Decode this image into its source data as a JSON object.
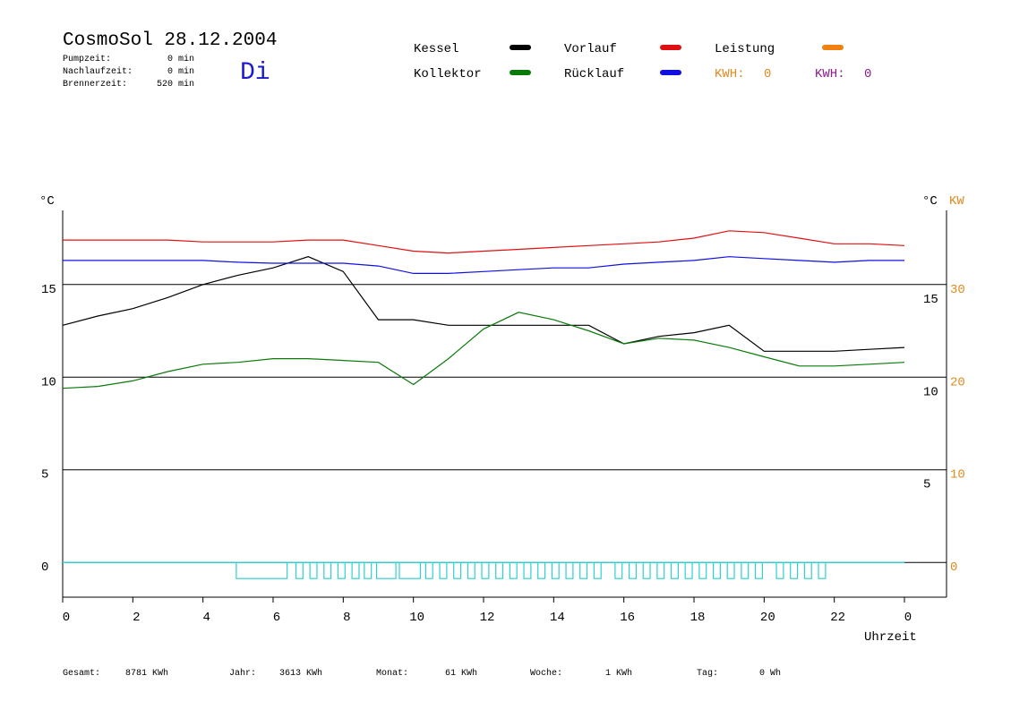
{
  "header": {
    "title": "CosmoSol 28.12.2004",
    "day": "Di",
    "stats": [
      {
        "label": "Pumpzeit:",
        "value": "0 min"
      },
      {
        "label": "Nachlaufzeit:",
        "value": "0 min"
      },
      {
        "label": "Brennerzeit:",
        "value": "520 min"
      }
    ]
  },
  "kwh": [
    {
      "label": "KWH:",
      "value": 0,
      "color": "#e08a1e"
    },
    {
      "label": "KWH:",
      "value": 0,
      "color": "#8a1e8a"
    }
  ],
  "footer": [
    {
      "label": "Gesamt:",
      "value": "8781 KWh"
    },
    {
      "label": "Jahr:",
      "value": "3613 KWh"
    },
    {
      "label": "Monat:",
      "value": "61 KWh"
    },
    {
      "label": "Woche:",
      "value": "1 KWh"
    },
    {
      "label": "Tag:",
      "value": "0 Wh"
    }
  ],
  "chart_data": {
    "type": "line",
    "x": [
      0,
      1,
      2,
      3,
      4,
      5,
      6,
      7,
      8,
      9,
      10,
      11,
      12,
      13,
      14,
      15,
      16,
      17,
      18,
      19,
      20,
      21,
      22,
      23,
      24
    ],
    "xlim": [
      0,
      25.2
    ],
    "xticks": [
      0,
      2,
      4,
      6,
      8,
      10,
      12,
      14,
      16,
      18,
      20,
      22,
      {
        "value": 24,
        "label": "0"
      }
    ],
    "xlabel": "Uhrzeit",
    "ylabel": "°C",
    "y2label_left": "°C",
    "y2label": "KW",
    "ylim": [
      -1.875,
      19
    ],
    "yticks": [
      0,
      5,
      10,
      15
    ],
    "right_yticks": [
      5,
      10,
      15
    ],
    "y2lim": [
      -3.75,
      38
    ],
    "y2ticks": [
      0,
      10,
      20,
      30
    ],
    "y2color": "#e08a1e",
    "grid": true,
    "series": [
      {
        "name": "Kessel",
        "color": "#000000",
        "values": [
          12.8,
          13.3,
          13.7,
          14.3,
          15.0,
          15.5,
          15.9,
          16.5,
          15.7,
          13.1,
          13.1,
          12.8,
          12.8,
          12.8,
          12.8,
          12.8,
          11.8,
          12.2,
          12.4,
          12.8,
          11.4,
          11.4,
          11.4,
          11.5,
          11.6
        ]
      },
      {
        "name": "Kollektor",
        "color": "#0a7a0a",
        "values": [
          9.4,
          9.5,
          9.8,
          10.3,
          10.7,
          10.8,
          11.0,
          11.0,
          10.9,
          10.8,
          9.6,
          11.0,
          12.6,
          13.5,
          13.1,
          12.5,
          11.8,
          12.1,
          12.0,
          11.6,
          11.1,
          10.6,
          10.6,
          10.7,
          10.8
        ]
      },
      {
        "name": "Vorlauf",
        "color": "#e01010",
        "values": [
          17.4,
          17.4,
          17.4,
          17.4,
          17.3,
          17.3,
          17.3,
          17.4,
          17.4,
          17.1,
          16.8,
          16.7,
          16.8,
          16.9,
          17.0,
          17.1,
          17.2,
          17.3,
          17.5,
          17.9,
          17.8,
          17.5,
          17.2,
          17.2,
          17.1
        ]
      },
      {
        "name": "Rücklauf",
        "color": "#1010e0",
        "values": [
          16.3,
          16.3,
          16.3,
          16.3,
          16.3,
          16.2,
          16.15,
          16.15,
          16.15,
          16.0,
          15.6,
          15.6,
          15.7,
          15.8,
          15.9,
          15.9,
          16.1,
          16.2,
          16.3,
          16.5,
          16.4,
          16.3,
          16.2,
          16.3,
          16.3
        ]
      },
      {
        "name": "Leistung",
        "color": "#f08010",
        "axis": "y2",
        "values": [
          null,
          null,
          null,
          null,
          null,
          null,
          null,
          null,
          null,
          null,
          null,
          null,
          null,
          null,
          null,
          null,
          null,
          null,
          null,
          null,
          null,
          null,
          null,
          null,
          null
        ]
      }
    ],
    "burner": {
      "color": "#30d0d0",
      "intervals": [
        [
          4.95,
          6.4
        ],
        [
          6.65,
          6.85
        ],
        [
          7.05,
          7.25
        ],
        [
          7.45,
          7.65
        ],
        [
          7.85,
          8.05
        ],
        [
          8.25,
          8.45
        ],
        [
          8.6,
          8.8
        ],
        [
          8.95,
          9.5
        ],
        [
          9.6,
          10.2
        ],
        [
          10.35,
          10.55
        ],
        [
          10.75,
          10.95
        ],
        [
          11.15,
          11.35
        ],
        [
          11.55,
          11.75
        ],
        [
          11.95,
          12.15
        ],
        [
          12.35,
          12.55
        ],
        [
          12.75,
          12.95
        ],
        [
          13.15,
          13.35
        ],
        [
          13.55,
          13.75
        ],
        [
          13.95,
          14.15
        ],
        [
          14.35,
          14.55
        ],
        [
          14.75,
          14.95
        ],
        [
          15.15,
          15.35
        ],
        [
          15.75,
          15.95
        ],
        [
          16.15,
          16.35
        ],
        [
          16.55,
          16.75
        ],
        [
          16.95,
          17.15
        ],
        [
          17.35,
          17.55
        ],
        [
          17.75,
          17.95
        ],
        [
          18.15,
          18.35
        ],
        [
          18.55,
          18.75
        ],
        [
          18.95,
          19.15
        ],
        [
          19.35,
          19.55
        ],
        [
          19.75,
          19.95
        ],
        [
          20.35,
          20.55
        ],
        [
          20.75,
          20.95
        ],
        [
          21.15,
          21.35
        ],
        [
          21.55,
          21.75
        ]
      ]
    }
  }
}
